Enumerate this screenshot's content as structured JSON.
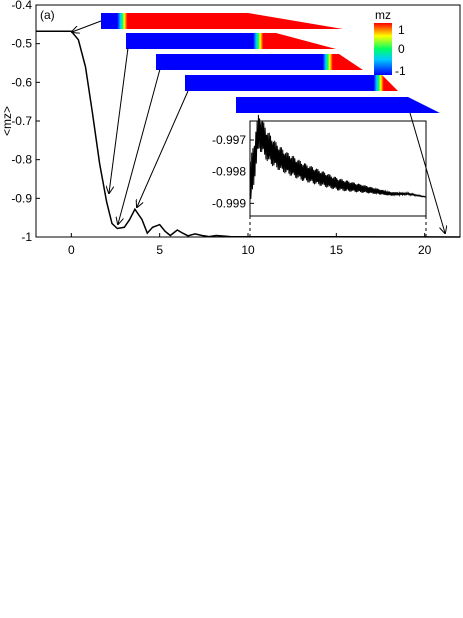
{
  "chart_data": {
    "type": "line",
    "panel_label": "(a)",
    "ylabel": "<mz>",
    "xlabel": "",
    "xlim": [
      -2,
      22
    ],
    "ylim": [
      -1.0,
      -0.4
    ],
    "xticks": [
      0,
      5,
      10,
      15,
      20
    ],
    "yticks": [
      -0.4,
      -0.5,
      -0.6,
      -0.7,
      -0.8,
      -0.9,
      -1.0
    ],
    "ytick_labels": [
      "-0.4",
      "-0.5",
      "-0.6",
      "-0.7",
      "-0.8",
      "-0.9",
      "-1"
    ],
    "series": [
      {
        "x": [
          -2,
          -1,
          0,
          0.4,
          0.8,
          1.2,
          1.6,
          2.0,
          2.3,
          2.6,
          3.0,
          3.3,
          3.6,
          4.0,
          4.3,
          4.6,
          5.0,
          5.3,
          5.6,
          6.0,
          6.3,
          6.6,
          7.0,
          7.4,
          7.8,
          8.2,
          9,
          10,
          12,
          15,
          18,
          20,
          22
        ],
        "y": [
          -0.468,
          -0.468,
          -0.468,
          -0.49,
          -0.56,
          -0.68,
          -0.81,
          -0.91,
          -0.965,
          -0.978,
          -0.975,
          -0.955,
          -0.928,
          -0.955,
          -0.99,
          -0.975,
          -0.968,
          -0.985,
          -0.996,
          -0.982,
          -0.99,
          -0.997,
          -0.992,
          -0.996,
          -0.999,
          -0.996,
          -0.999,
          -0.9992,
          -0.9994,
          -0.9996,
          -0.9998,
          -0.9998,
          -0.9999
        ]
      }
    ],
    "inset": {
      "yticks": [
        -0.997,
        -0.998,
        -0.999
      ],
      "ylim": [
        -0.9994,
        -0.9964
      ],
      "xlim": [
        10,
        20
      ],
      "series": {
        "x": [
          10.0,
          10.5,
          11,
          11.5,
          12,
          13,
          14,
          15,
          16,
          17,
          18,
          19,
          20
        ],
        "y": [
          -0.9985,
          -0.9967,
          -0.9972,
          -0.9975,
          -0.9977,
          -0.998,
          -0.9982,
          -0.9984,
          -0.9985,
          -0.9986,
          -0.9987,
          -0.9987,
          -0.9988
        ],
        "amplitude": [
          0.0008,
          0.0006,
          0.0005,
          0.00042,
          0.00036,
          0.0003,
          0.00025,
          0.0002,
          0.00015,
          0.0001,
          6e-05,
          3e-05,
          1e-05
        ]
      }
    },
    "colorbar": {
      "title": "mz",
      "ticks": [
        "1",
        "0",
        "-1"
      ],
      "colors": [
        "#ff0000",
        "#ffff00",
        "#00ff66",
        "#00ccff",
        "#0000ff"
      ]
    },
    "snapshots": [
      {
        "domain_wall_position": 0.08,
        "arrow_x": 0
      },
      {
        "domain_wall_position": 0.62,
        "arrow_x": 2
      },
      {
        "domain_wall_position": 0.82,
        "arrow_x": 2.5
      },
      {
        "domain_wall_position": 0.9,
        "arrow_x": 3.7
      },
      {
        "domain_wall_position": 1.0,
        "arrow_x": 21
      }
    ]
  }
}
